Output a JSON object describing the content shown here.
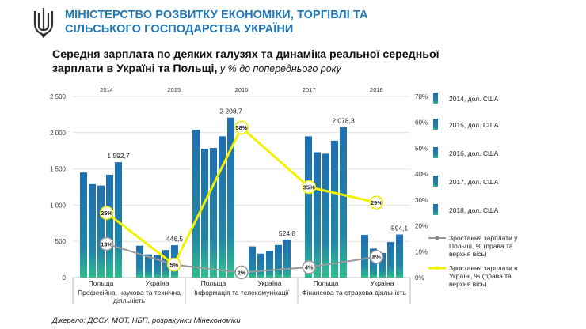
{
  "header": {
    "ministry_line1": "МІНІСТЕРСТВО РОЗВИТКУ ЕКОНОМІКИ, ТОРГІВЛІ ТА",
    "ministry_line2": "СІЛЬСЬКОГО ГОСПОДАРСТВА УКРАЇНИ"
  },
  "title": {
    "main_line1": "Середня зарплата по деяких галузях та динаміка реальної середньої",
    "main_line2": "зарплати в Україні та Польщі,",
    "sub": " у % до попереднього року"
  },
  "source": "Джерело: ДССУ, МОТ, НБП, розрахунки Мінекономіки",
  "colors": {
    "ministry_blue": "#1f78b4",
    "bar_top": "#1f6fb0",
    "bar_bottom": "#2fbf8f",
    "line_poland": "#9a9a9a",
    "line_ukraine": "#f2f200"
  },
  "chart_data": {
    "type": "bar",
    "left_axis": {
      "ticks": [
        "0",
        "500",
        "1 000",
        "1 500",
        "2 000",
        "2 500"
      ],
      "ylim": [
        0,
        2500
      ]
    },
    "right_axis": {
      "ticks": [
        "0%",
        "10%",
        "20%",
        "30%",
        "40%",
        "50%",
        "60%",
        "70%"
      ],
      "ylim": [
        0,
        70
      ]
    },
    "year_labels": [
      "2014",
      "2015",
      "2016",
      "2017",
      "2018"
    ],
    "groups": [
      {
        "country": "Польща",
        "sector": "Професійна, наукова та технічна діяльність",
        "sector_line1": "Професійна, наукова та технічна",
        "sector_line2": "діяльність",
        "values": [
          1450,
          1290,
          1270,
          1420,
          1592.7
        ],
        "label": "1 592,7"
      },
      {
        "country": "Україна",
        "values": [
          440,
          320,
          310,
          380,
          446.5
        ],
        "label": "446,5"
      },
      {
        "country": "Польща",
        "sector": "Інформація та телекомунікації",
        "sector_line1": "Інформація та телекомунікації",
        "sector_line2": "",
        "values": [
          2040,
          1780,
          1790,
          1950,
          2208.7
        ],
        "label": "2 208,7"
      },
      {
        "country": "Україна",
        "values": [
          430,
          330,
          370,
          450,
          524.8
        ],
        "label": "524,8"
      },
      {
        "country": "Польща",
        "sector": "Фінансова та страхова діяльність",
        "sector_line1": "Фінансова та страхова діяльність",
        "sector_line2": "",
        "values": [
          1950,
          1730,
          1710,
          1890,
          2078.3
        ],
        "label": "2 078,3"
      },
      {
        "country": "Україна",
        "values": [
          590,
          400,
          340,
          490,
          594.1
        ],
        "label": "594,1"
      }
    ],
    "legend": [
      "2014, дол. США",
      "2015, дол. США",
      "2016, дол. США",
      "2017, дол. США",
      "2018, дол. США",
      "Зростання зарплати у Польщі, % (права та верхня вісь)",
      "Зростання зарплати в Україні, % (права та верхня вісь)"
    ],
    "series_lines": [
      {
        "name": "Зростання зарплати у Польщі, % (права та верхня вісь)",
        "years": [
          "2014",
          "2015",
          "2016",
          "2017",
          "2018"
        ],
        "values": [
          13,
          5,
          2,
          4,
          8
        ],
        "labels": [
          "13%",
          "5%",
          "2%",
          "4%",
          "8%"
        ]
      },
      {
        "name": "Зростання зарплати в Україні, % (права та верхня вісь)",
        "years": [
          "2014",
          "2015",
          "2016",
          "2017",
          "2018"
        ],
        "values": [
          25,
          5,
          58,
          35,
          29
        ],
        "labels": [
          "25%",
          "5%",
          "58%",
          "35%",
          "29%"
        ]
      }
    ]
  }
}
